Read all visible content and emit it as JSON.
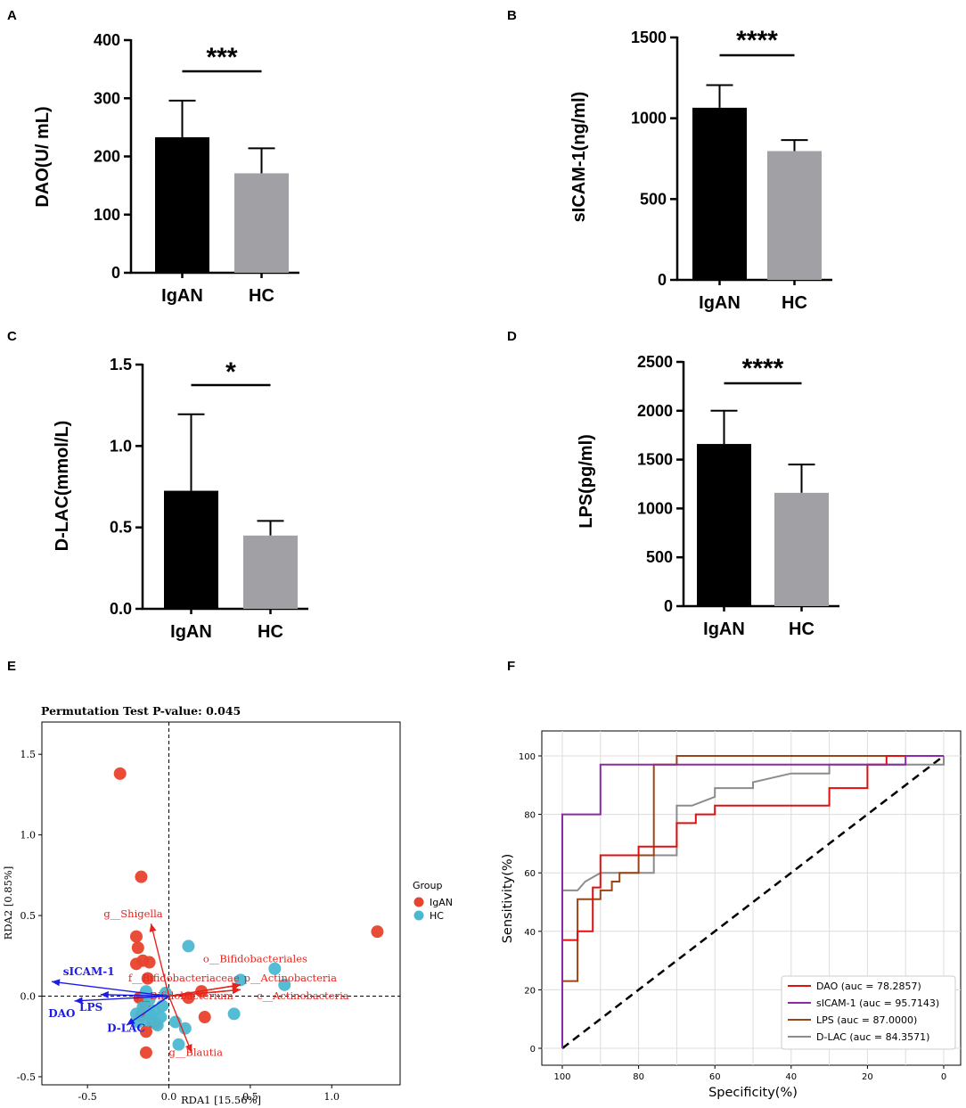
{
  "colors": {
    "igan_bar": "#000000",
    "hc_bar": "#a0a0a5",
    "igan_point": "#e8432c",
    "hc_point": "#4bb8d1",
    "bacteria": "#e8221c",
    "env": "#1c1ce6",
    "roc_dao": "#e01010",
    "roc_sicam": "#8a2aa8",
    "roc_lps": "#9c4415",
    "roc_dlac": "#8c8c8c",
    "grid": "#dcdcdc"
  },
  "chart_data": [
    {
      "panel": "A",
      "type": "bar",
      "categories": [
        "IgAN",
        "HC"
      ],
      "values": [
        233,
        171
      ],
      "errors": [
        63,
        43
      ],
      "ylabel": "DAO(U/ mL)",
      "ylim": [
        0,
        400
      ],
      "yticks": [
        "0",
        "100",
        "200",
        "300",
        "400"
      ],
      "ytick_values": [
        0,
        100,
        200,
        300,
        400
      ],
      "significance": "***"
    },
    {
      "panel": "B",
      "type": "bar",
      "categories": [
        "IgAN",
        "HC"
      ],
      "values": [
        1065,
        797
      ],
      "errors": [
        140,
        68
      ],
      "ylabel": "sICAM-1(ng/ml)",
      "ylim": [
        0,
        1500
      ],
      "yticks": [
        "0",
        "500",
        "1000",
        "1500"
      ],
      "ytick_values": [
        0,
        500,
        1000,
        1500
      ],
      "significance": "****"
    },
    {
      "panel": "C",
      "type": "bar",
      "categories": [
        "IgAN",
        "HC"
      ],
      "values": [
        0.725,
        0.45
      ],
      "errors": [
        0.47,
        0.09
      ],
      "ylabel": "D-LAC(mmol/L)",
      "ylim": [
        0,
        1.5
      ],
      "yticks": [
        "0.0",
        "0.5",
        "1.0",
        "1.5"
      ],
      "ytick_values": [
        0,
        0.5,
        1.0,
        1.5
      ],
      "significance": "*"
    },
    {
      "panel": "D",
      "type": "bar",
      "categories": [
        "IgAN",
        "HC"
      ],
      "values": [
        1660,
        1160
      ],
      "errors": [
        340,
        290
      ],
      "ylabel": "LPS(pg/ml)",
      "ylim": [
        0,
        2500
      ],
      "yticks": [
        "0",
        "500",
        "1000",
        "1500",
        "2000",
        "2500"
      ],
      "ytick_values": [
        0,
        500,
        1000,
        1500,
        2000,
        2500
      ],
      "significance": "****"
    },
    {
      "panel": "E",
      "type": "scatter",
      "title": "Permutation Test P-value: 0.045",
      "xlabel": "RDA1 [15.56%]",
      "ylabel": "RDA2 [0.85%]",
      "xlim": [
        -0.78,
        1.42
      ],
      "ylim": [
        -0.55,
        1.7
      ],
      "xticks": [
        "-0.5",
        "0.0",
        "0.5",
        "1.0"
      ],
      "xtick_values": [
        -0.5,
        0.0,
        0.5,
        1.0
      ],
      "yticks": [
        "-0.5",
        "0.0",
        "0.5",
        "1.0",
        "1.5"
      ],
      "ytick_values": [
        -0.5,
        0.0,
        0.5,
        1.0,
        1.5
      ],
      "legend_title": "Group",
      "series": [
        {
          "name": "IgAN",
          "points": [
            [
              -0.3,
              1.38
            ],
            [
              -0.17,
              0.74
            ],
            [
              -0.2,
              0.37
            ],
            [
              -0.19,
              0.3
            ],
            [
              -0.2,
              0.2
            ],
            [
              -0.16,
              0.22
            ],
            [
              -0.12,
              0.21
            ],
            [
              -0.13,
              0.11
            ],
            [
              -0.18,
              -0.01
            ],
            [
              -0.15,
              -0.05
            ],
            [
              -0.17,
              -0.12
            ],
            [
              -0.1,
              -0.16
            ],
            [
              -0.14,
              -0.22
            ],
            [
              -0.08,
              -0.17
            ],
            [
              -0.14,
              -0.35
            ],
            [
              0.12,
              -0.01
            ],
            [
              0.2,
              0.03
            ],
            [
              0.22,
              -0.13
            ],
            [
              1.28,
              0.4
            ]
          ]
        },
        {
          "name": "HC",
          "points": [
            [
              0.12,
              0.31
            ],
            [
              0.44,
              0.1
            ],
            [
              0.65,
              0.17
            ],
            [
              0.71,
              0.07
            ],
            [
              0.4,
              -0.11
            ],
            [
              0.06,
              -0.3
            ],
            [
              0.1,
              -0.2
            ],
            [
              0.04,
              -0.16
            ],
            [
              -0.05,
              -0.13
            ],
            [
              -0.07,
              -0.18
            ],
            [
              -0.11,
              -0.12
            ],
            [
              -0.13,
              -0.15
            ],
            [
              -0.16,
              -0.07
            ],
            [
              -0.12,
              -0.02
            ],
            [
              -0.04,
              -0.06
            ],
            [
              -0.09,
              -0.09
            ],
            [
              -0.19,
              -0.16
            ],
            [
              -0.14,
              0.03
            ],
            [
              -0.02,
              0.02
            ],
            [
              -0.2,
              -0.11
            ]
          ]
        }
      ],
      "bacteria_vectors": [
        {
          "label": "g__Shigella",
          "end": [
            -0.11,
            0.45
          ],
          "label_at": [
            -0.4,
            0.49
          ]
        },
        {
          "label": "g__Blautia",
          "end": [
            0.14,
            -0.35
          ],
          "label_at": [
            0.0,
            -0.37
          ]
        },
        {
          "label": "o__Bifidobacteriales",
          "end": [
            0.44,
            0.07
          ],
          "label_at": [
            0.21,
            0.21
          ]
        },
        {
          "label": "f__Bifidobacteriaceae",
          "end": [
            0.44,
            0.07
          ],
          "label_at": [
            -0.25,
            0.09
          ]
        },
        {
          "label": "p__Actinobacteria",
          "end": [
            0.44,
            0.07
          ],
          "label_at": [
            0.46,
            0.09
          ]
        },
        {
          "label": "c__Actinobacteria",
          "end": [
            0.44,
            0.04
          ],
          "label_at": [
            0.54,
            -0.02
          ]
        },
        {
          "label": "g__Bifidobacterium",
          "end": [
            0.44,
            0.04
          ],
          "label_at": [
            -0.22,
            -0.02
          ]
        }
      ],
      "env_vectors": [
        {
          "label": "sICAM-1",
          "end": [
            -0.72,
            0.09
          ],
          "label_at": [
            -0.65,
            0.13
          ]
        },
        {
          "label": "LPS",
          "end": [
            -0.58,
            -0.03
          ],
          "label_at": [
            -0.55,
            -0.09
          ]
        },
        {
          "label": "DAO",
          "end": [
            -0.42,
            0.01
          ],
          "label_at": [
            -0.74,
            -0.13
          ]
        },
        {
          "label": "D-LAC",
          "end": [
            -0.26,
            -0.18
          ],
          "label_at": [
            -0.38,
            -0.22
          ]
        }
      ]
    },
    {
      "panel": "F",
      "type": "line",
      "xlabel": "Specificity(%)",
      "ylabel": "Sensitivity(%)",
      "xlim": [
        100,
        0
      ],
      "ylim": [
        0,
        100
      ],
      "xticks": [
        "100",
        "80",
        "60",
        "40",
        "20",
        "0"
      ],
      "xtick_values": [
        100,
        80,
        60,
        40,
        20,
        0
      ],
      "yticks": [
        "0",
        "20",
        "40",
        "60",
        "80",
        "100"
      ],
      "ytick_values": [
        0,
        20,
        40,
        60,
        80,
        100
      ],
      "reference_line": [
        [
          100,
          0
        ],
        [
          0,
          100
        ]
      ],
      "series": [
        {
          "name": "DAO",
          "legend": "DAO (auc = 78.2857)",
          "points": [
            [
              100,
              0
            ],
            [
              100,
              37
            ],
            [
              96,
              37
            ],
            [
              96,
              40
            ],
            [
              92,
              40
            ],
            [
              92,
              55
            ],
            [
              90,
              55
            ],
            [
              90,
              66
            ],
            [
              80,
              66
            ],
            [
              80,
              69
            ],
            [
              70,
              69
            ],
            [
              70,
              77
            ],
            [
              65,
              77
            ],
            [
              65,
              80
            ],
            [
              60,
              80
            ],
            [
              60,
              83
            ],
            [
              30,
              83
            ],
            [
              30,
              89
            ],
            [
              20,
              89
            ],
            [
              20,
              97
            ],
            [
              15,
              97
            ],
            [
              15,
              100
            ],
            [
              0,
              100
            ]
          ]
        },
        {
          "name": "sICAM-1",
          "legend": "sICAM-1 (auc = 95.7143)",
          "points": [
            [
              100,
              0
            ],
            [
              100,
              80
            ],
            [
              90,
              80
            ],
            [
              90,
              97
            ],
            [
              10,
              97
            ],
            [
              10,
              100
            ],
            [
              0,
              100
            ]
          ]
        },
        {
          "name": "LPS",
          "legend": "LPS (auc = 87.0000)",
          "points": [
            [
              100,
              0
            ],
            [
              100,
              23
            ],
            [
              96,
              23
            ],
            [
              96,
              51
            ],
            [
              90,
              51
            ],
            [
              90,
              54
            ],
            [
              87,
              54
            ],
            [
              87,
              57
            ],
            [
              85,
              57
            ],
            [
              85,
              60
            ],
            [
              80,
              60
            ],
            [
              80,
              66
            ],
            [
              76,
              66
            ],
            [
              76,
              97
            ],
            [
              70,
              97
            ],
            [
              70,
              100
            ],
            [
              0,
              100
            ]
          ]
        },
        {
          "name": "D-LAC",
          "legend": "D-LAC (auc = 84.3571)",
          "points": [
            [
              100,
              0
            ],
            [
              100,
              54
            ],
            [
              96,
              54
            ],
            [
              94,
              57
            ],
            [
              90,
              60
            ],
            [
              76,
              60
            ],
            [
              76,
              66
            ],
            [
              70,
              66
            ],
            [
              70,
              83
            ],
            [
              66,
              83
            ],
            [
              60,
              86
            ],
            [
              60,
              89
            ],
            [
              50,
              89
            ],
            [
              50,
              91
            ],
            [
              40,
              94
            ],
            [
              30,
              94
            ],
            [
              30,
              97
            ],
            [
              0,
              97
            ],
            [
              0,
              100
            ]
          ]
        }
      ]
    }
  ],
  "rda_legend": {
    "title": "Group",
    "items": [
      "IgAN",
      "HC"
    ]
  }
}
